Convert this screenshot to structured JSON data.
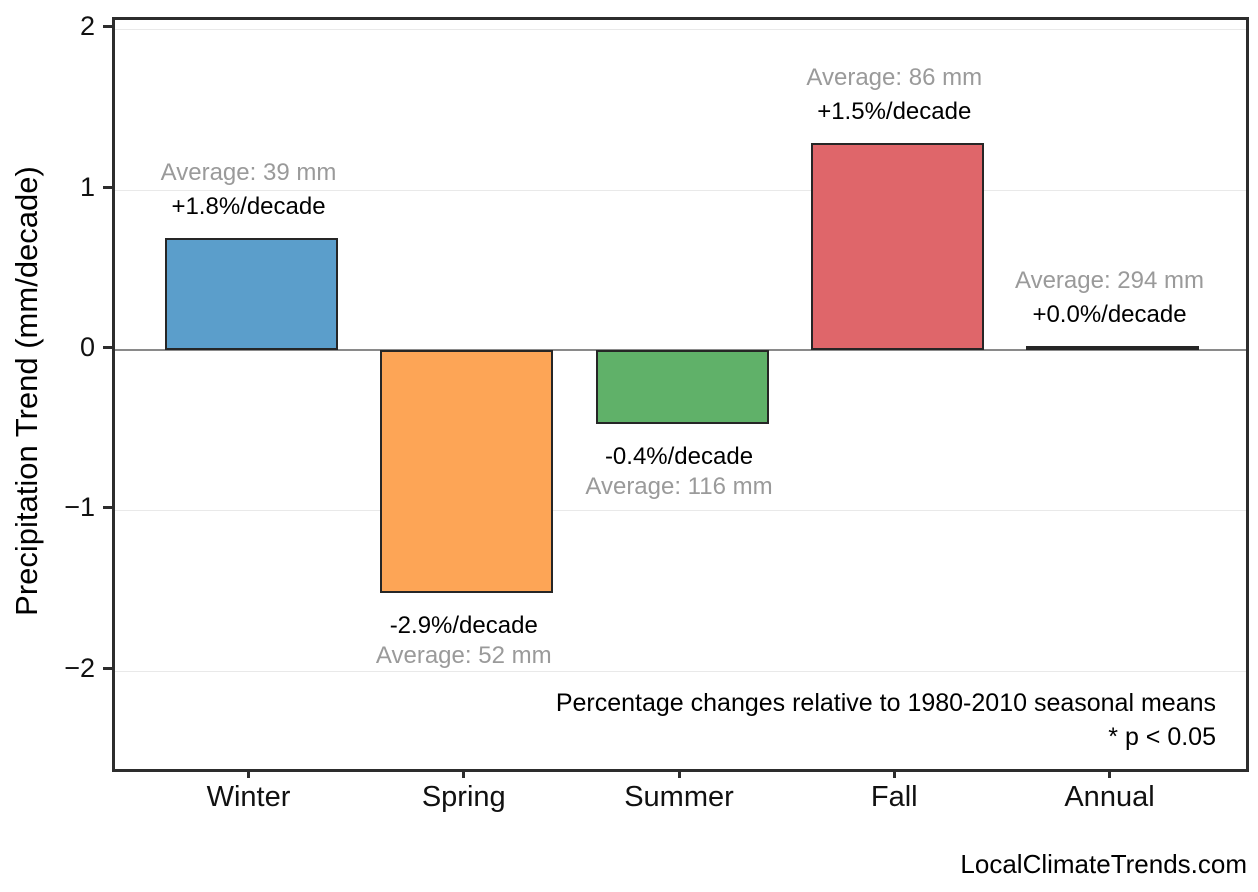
{
  "chart_data": {
    "type": "bar",
    "title": "",
    "xlabel": "",
    "ylabel": "Precipitation Trend (mm/decade)",
    "categories": [
      "Winter",
      "Spring",
      "Summer",
      "Fall",
      "Annual"
    ],
    "values": [
      0.7,
      -1.51,
      -0.46,
      1.29,
      0.03
    ],
    "bar_colors": [
      "#5b9ecb",
      "#fda556",
      "#60b169",
      "#df666a",
      "#a685c9"
    ],
    "bar_edge_color": "#262626",
    "bar_labels": [
      {
        "trend": "+1.8%/decade",
        "average": "Average: 39 mm"
      },
      {
        "trend": "-2.9%/decade",
        "average": "Average: 52 mm"
      },
      {
        "trend": "-0.4%/decade",
        "average": "Average: 116 mm"
      },
      {
        "trend": "+1.5%/decade",
        "average": "Average: 86 mm"
      },
      {
        "trend": "+0.0%/decade",
        "average": "Average: 294 mm"
      }
    ],
    "ylim": [
      -2.61,
      2.06
    ],
    "yticks": [
      2,
      1,
      0,
      -1,
      -2
    ],
    "ytick_labels": [
      "2",
      "1",
      "0",
      "−1",
      "−2"
    ],
    "grid": "horizontal-light",
    "legend": "none",
    "zero_line_color": "#8a8a8a",
    "grid_color": "#e9e9e9",
    "label_colors": {
      "trend": "#000000",
      "average": "#9a9a9a"
    },
    "annotations": {
      "note_line1": "Percentage changes relative to 1980-2010 seasonal means",
      "note_line2": "* p < 0.05"
    }
  },
  "footer": {
    "watermark": "LocalClimateTrends.com"
  }
}
